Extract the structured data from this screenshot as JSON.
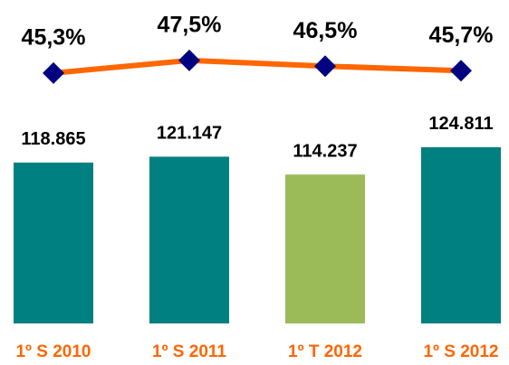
{
  "chart_data": {
    "type": "bar",
    "categories": [
      "1º S 2010",
      "1º S 2011",
      "1º T 2012",
      "1º S 2012"
    ],
    "ylim": [
      56600,
      181800
    ],
    "y2lim": [
      1.75,
      58
    ],
    "series": [
      {
        "type": "bar",
        "values": [
          118865,
          121147,
          114237,
          124811
        ],
        "value_labels": [
          "118.865",
          "121.147",
          "114.237",
          "124.811"
        ],
        "colors": [
          "#008080",
          "#008080",
          "#9bbb59",
          "#008080"
        ]
      },
      {
        "type": "line",
        "axis": "y2",
        "values": [
          45.3,
          47.5,
          46.5,
          45.7
        ],
        "value_labels": [
          "45,3%",
          "47,5%",
          "46,5%",
          "45,7%"
        ],
        "color": "#ff6600",
        "marker_color": "#000080"
      }
    ]
  }
}
